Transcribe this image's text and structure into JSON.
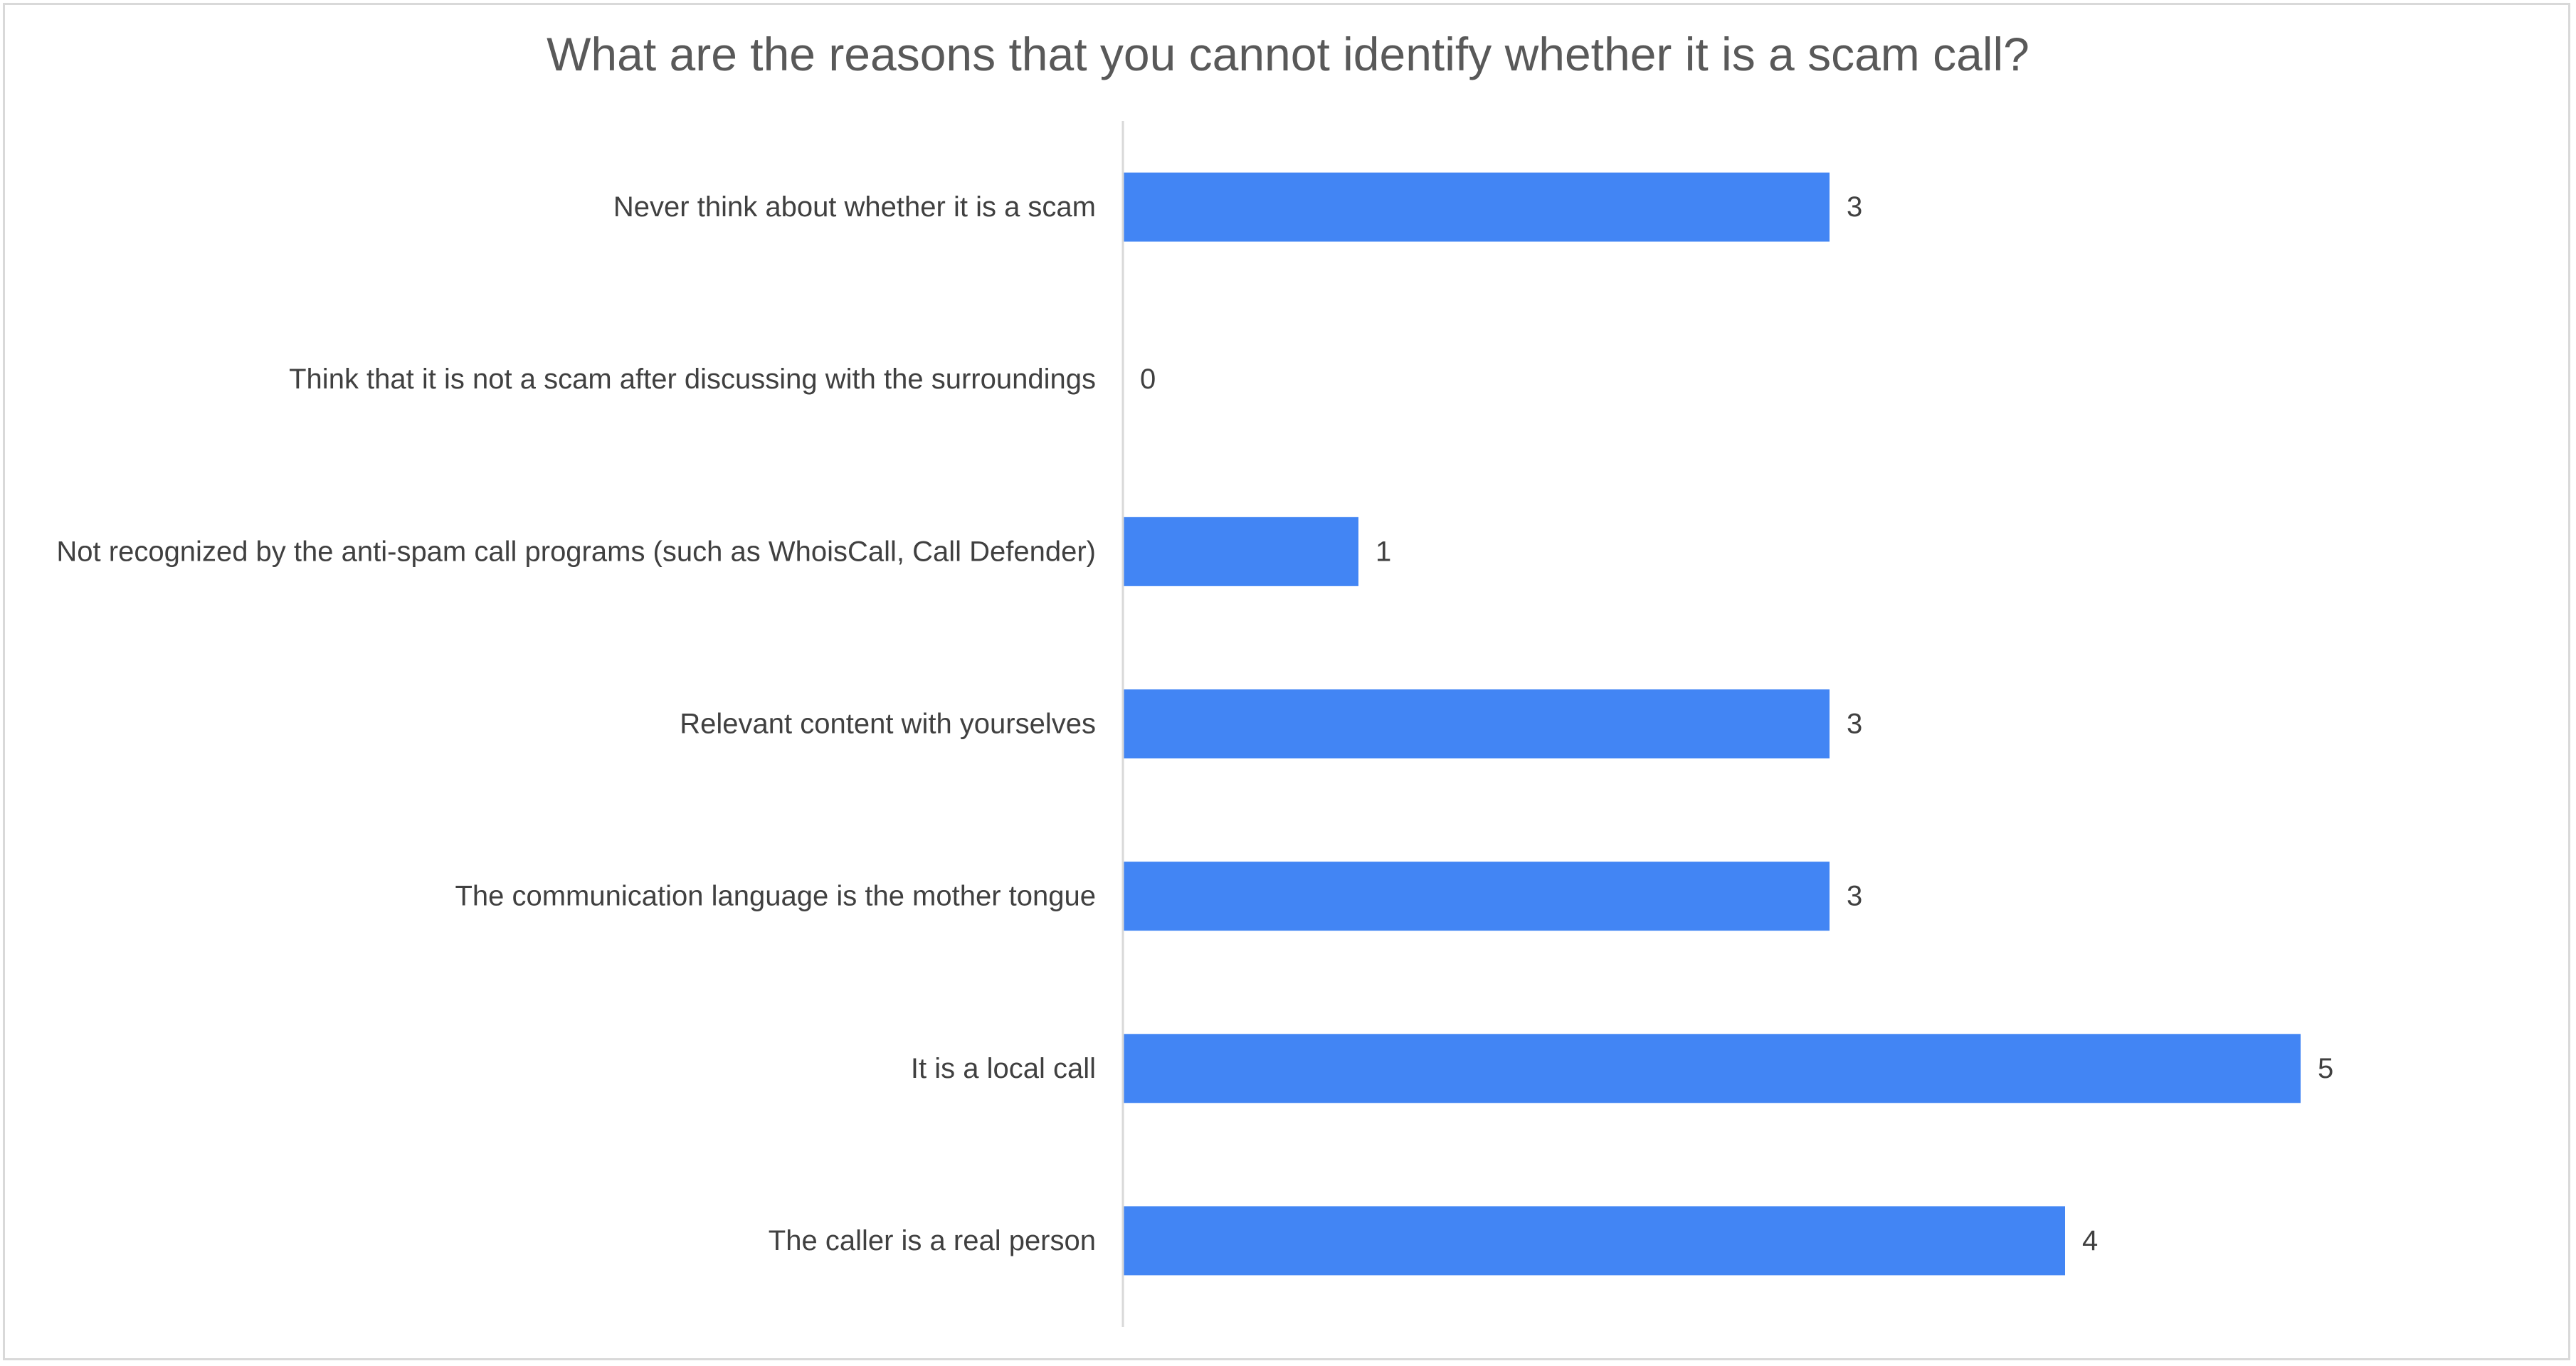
{
  "chart_data": {
    "type": "bar",
    "orientation": "horizontal",
    "title": "What are the reasons that you cannot identify whether it is a scam call?",
    "xlabel": "",
    "ylabel": "",
    "categories": [
      "Never think about whether it is a scam",
      "Think that it is not a scam after discussing with the surroundings",
      "Not recognized by the anti-spam call programs (such as WhoisCall, Call Defender)",
      "Relevant content with yourselves",
      "The communication language is the mother tongue",
      "It is a local call",
      "The caller is a real person"
    ],
    "values": [
      3,
      0,
      1,
      3,
      3,
      5,
      4
    ],
    "xlim": [
      0,
      5
    ],
    "grid": false,
    "legend": "none",
    "data_labels": true,
    "bar_color": "#4285f4",
    "label_color": "#404040",
    "axis_color": "#d9d9d9"
  }
}
